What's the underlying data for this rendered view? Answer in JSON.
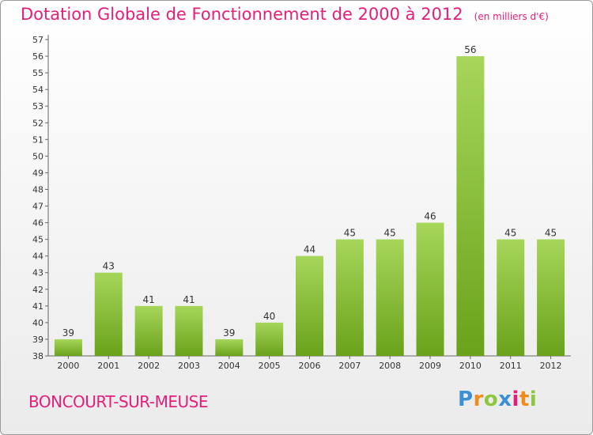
{
  "header": {
    "title": "Dotation Globale de Fonctionnement de 2000 à 2012",
    "unit": "(en milliers d'€)"
  },
  "footer": {
    "commune": "BONCOURT-SUR-MEUSE",
    "logo_letters": [
      "P",
      "r",
      "o",
      "x",
      "i",
      "t",
      "i"
    ]
  },
  "colors": {
    "title": "#e2207a",
    "bar_light": "#a6d65a",
    "bar_dark": "#6aa21a"
  },
  "chart_data": {
    "type": "bar",
    "title": "Dotation Globale de Fonctionnement de 2000 à 2012",
    "categories": [
      "2000",
      "2001",
      "2002",
      "2003",
      "2004",
      "2005",
      "2006",
      "2007",
      "2008",
      "2009",
      "2010",
      "2011",
      "2012"
    ],
    "values": [
      39,
      43,
      41,
      41,
      39,
      40,
      44,
      45,
      45,
      46,
      56,
      45,
      45
    ],
    "ylim": [
      38,
      57
    ],
    "yticks": [
      38,
      39,
      40,
      41,
      42,
      43,
      44,
      45,
      46,
      47,
      48,
      49,
      50,
      51,
      52,
      53,
      54,
      55,
      56,
      57
    ],
    "grid": false,
    "data_labels": true
  }
}
